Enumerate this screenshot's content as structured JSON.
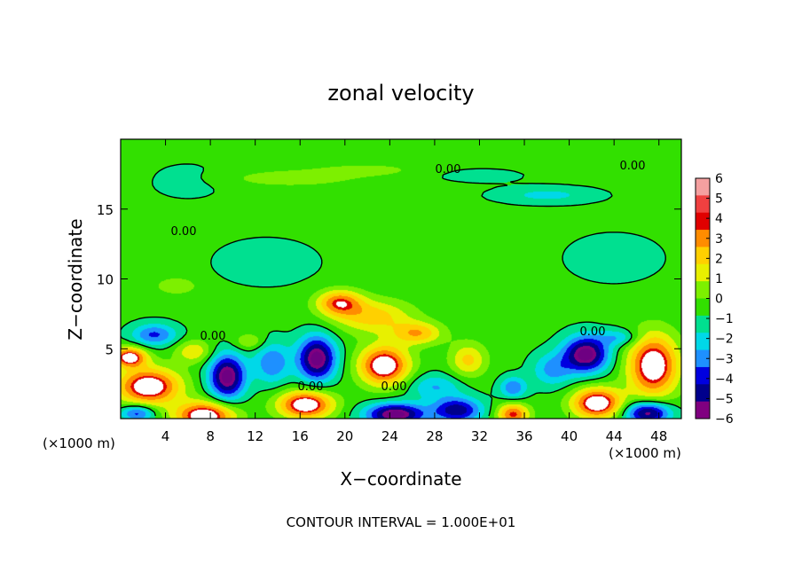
{
  "chart_data": {
    "type": "heatmap",
    "title": "zonal velocity",
    "xlabel": "X−coordinate",
    "ylabel": "Z−coordinate",
    "x_unit_left": "(×1000 m)",
    "x_unit_right": "(×1000 m)",
    "xlim": [
      0,
      50
    ],
    "ylim": [
      0,
      20
    ],
    "x_ticks": [
      4,
      8,
      12,
      16,
      20,
      24,
      28,
      32,
      36,
      40,
      44,
      48
    ],
    "x_tick_labels": [
      "4",
      "8",
      "12",
      "16",
      "20",
      "24",
      "28",
      "32",
      "36",
      "40",
      "44",
      "48"
    ],
    "y_ticks": [
      5,
      10,
      15
    ],
    "y_tick_labels": [
      "5",
      "10",
      "15"
    ],
    "colorbar": {
      "min": -6,
      "max": 6,
      "labels": [
        "6",
        "5",
        "4",
        "3",
        "2",
        "1",
        "0",
        "−1",
        "−2",
        "−3",
        "−4",
        "−5",
        "−6"
      ],
      "colors": [
        "#f4a0a0",
        "#f04040",
        "#e00000",
        "#ff8c00",
        "#ffd000",
        "#e8f000",
        "#7df000",
        "#32e000",
        "#00e090",
        "#00d8e8",
        "#1e90ff",
        "#0000e0",
        "#00008c",
        "#800080"
      ]
    },
    "contour_labels": [
      "0.00",
      "0.00",
      "0.00",
      "0.00",
      "0.00",
      "0.00"
    ],
    "background_value": 0.3,
    "features": [
      {
        "x": 2.5,
        "z": 2.3,
        "v": 6.5,
        "sx": 2.8,
        "sz": 1.3
      },
      {
        "x": 0.8,
        "z": 4.4,
        "v": 6.0,
        "sx": 1.5,
        "sz": 0.7
      },
      {
        "x": 7.5,
        "z": 0.2,
        "v": 6.5,
        "sx": 2.6,
        "sz": 1.0
      },
      {
        "x": 16.5,
        "z": 1.0,
        "v": 6.5,
        "sx": 2.4,
        "sz": 1.0
      },
      {
        "x": 23.5,
        "z": 3.8,
        "v": 6.5,
        "sx": 2.2,
        "sz": 1.4
      },
      {
        "x": 35.0,
        "z": 0.3,
        "v": 5.0,
        "sx": 1.4,
        "sz": 0.8
      },
      {
        "x": 42.5,
        "z": 1.1,
        "v": 6.5,
        "sx": 2.2,
        "sz": 1.1
      },
      {
        "x": 47.5,
        "z": 3.8,
        "v": 6.5,
        "sx": 2.2,
        "sz": 2.2
      },
      {
        "x": 19.5,
        "z": 8.3,
        "v": 4.6,
        "sx": 2.0,
        "sz": 0.9
      },
      {
        "x": 22.5,
        "z": 7.3,
        "v": 3.2,
        "sx": 3.5,
        "sz": 1.2
      },
      {
        "x": 26.5,
        "z": 6.1,
        "v": 3.5,
        "sx": 2.2,
        "sz": 0.8
      },
      {
        "x": 31.0,
        "z": 4.2,
        "v": 3.0,
        "sx": 1.6,
        "sz": 1.2
      },
      {
        "x": 6.5,
        "z": 4.8,
        "v": 2.6,
        "sx": 1.6,
        "sz": 0.8
      },
      {
        "x": 9.5,
        "z": 3.0,
        "v": -6.5,
        "sx": 1.6,
        "sz": 1.6
      },
      {
        "x": 17.5,
        "z": 4.3,
        "v": -6.5,
        "sx": 1.7,
        "sz": 1.6
      },
      {
        "x": 41.5,
        "z": 4.6,
        "v": -6.5,
        "sx": 2.0,
        "sz": 1.3
      },
      {
        "x": 24.5,
        "z": 0.3,
        "v": -6.5,
        "sx": 2.6,
        "sz": 0.8
      },
      {
        "x": 30.0,
        "z": 0.6,
        "v": -5.0,
        "sx": 2.2,
        "sz": 0.9
      },
      {
        "x": 47.0,
        "z": 0.4,
        "v": -6.0,
        "sx": 2.0,
        "sz": 0.8
      },
      {
        "x": 3.0,
        "z": 6.0,
        "v": -3.5,
        "sx": 2.0,
        "sz": 0.8
      },
      {
        "x": 13.5,
        "z": 4.0,
        "v": -3.2,
        "sx": 1.6,
        "sz": 1.5
      },
      {
        "x": 35.0,
        "z": 2.2,
        "v": -3.2,
        "sx": 1.2,
        "sz": 0.8
      },
      {
        "x": 38.5,
        "z": 3.5,
        "v": -2.6,
        "sx": 1.8,
        "sz": 1.2
      },
      {
        "x": 28.0,
        "z": 2.3,
        "v": -2.3,
        "sx": 2.4,
        "sz": 0.9
      },
      {
        "x": 1.5,
        "z": 0.4,
        "v": -4.0,
        "sx": 1.5,
        "sz": 0.6
      },
      {
        "x": 44.5,
        "z": 5.8,
        "v": -2.2,
        "sx": 1.8,
        "sz": 0.6
      },
      {
        "x": 38.0,
        "z": 16.0,
        "v": -1.6,
        "sx": 4.5,
        "sz": 0.6
      },
      {
        "x": 32.0,
        "z": 17.4,
        "v": -0.8,
        "sx": 4.0,
        "sz": 0.5
      },
      {
        "x": 15.0,
        "z": 17.2,
        "v": 1.3,
        "sx": 6.0,
        "sz": 0.6
      },
      {
        "x": 22.0,
        "z": 17.8,
        "v": 1.0,
        "sx": 5.0,
        "sz": 0.5
      },
      {
        "x": 13.0,
        "z": 11.2,
        "v": -0.8,
        "sx": 5.0,
        "sz": 1.8
      },
      {
        "x": 44.0,
        "z": 11.5,
        "v": -0.7,
        "sx": 5.0,
        "sz": 2.0
      },
      {
        "x": 6.0,
        "z": 17.0,
        "v": -0.6,
        "sx": 4.0,
        "sz": 1.5
      },
      {
        "x": 5.0,
        "z": 9.5,
        "v": 1.6,
        "sx": 1.8,
        "sz": 0.6
      },
      {
        "x": 11.5,
        "z": 5.5,
        "v": 1.8,
        "sx": 1.4,
        "sz": 0.6
      }
    ]
  },
  "footer": {
    "contour_interval": "CONTOUR INTERVAL = 1.000E+01"
  }
}
